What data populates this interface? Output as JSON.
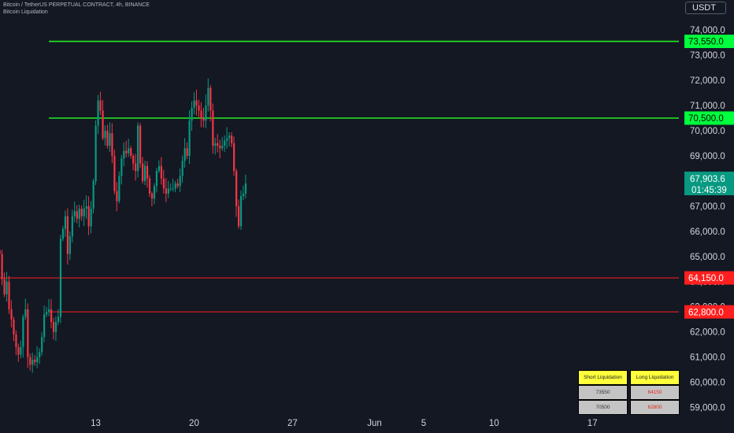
{
  "header": {
    "symbol_line": "Bitcoin / TetherUS PERPETUAL CONTRACT, 4h, BINANCE",
    "indicator_line": "Bitcoin Liquidation",
    "currency": "USDT"
  },
  "chart_data": {
    "type": "candlestick",
    "ylim": [
      58700,
      74850
    ],
    "y_ticks": [
      59000,
      60000,
      61000,
      62000,
      63000,
      64000,
      65000,
      66000,
      67000,
      68000,
      69000,
      70000,
      71000,
      72000,
      73000,
      74000
    ],
    "y_tick_labels": [
      "59,000.0",
      "60,000.0",
      "61,000.0",
      "62,000.0",
      "63,000.0",
      "64,000.0",
      "65,000.0",
      "66,000.0",
      "67,000.0",
      "68,000.0",
      "69,000.0",
      "70,000.0",
      "71,000.0",
      "72,000.0",
      "73,000.0",
      "74,000.0"
    ],
    "x_labels": [
      {
        "label": "13",
        "bar": 20
      },
      {
        "label": "20",
        "bar": 62
      },
      {
        "label": "27",
        "bar": 104
      },
      {
        "label": "Jun",
        "bar": 139
      },
      {
        "label": "5",
        "bar": 160
      },
      {
        "label": "10",
        "bar": 190
      },
      {
        "label": "17",
        "bar": 232
      }
    ],
    "grid": false,
    "levels": [
      {
        "price": 73550,
        "label": "73,550.0",
        "color": "#22ee22",
        "start_bar": 0
      },
      {
        "price": 70500,
        "label": "70,500.0",
        "color": "#22ee22",
        "start_bar": 0
      },
      {
        "price": 64150,
        "label": "64,150.0",
        "color": "#ff1e1e",
        "start_bar": -21
      },
      {
        "price": 62800,
        "label": "62,800.0",
        "color": "#ff1e1e",
        "start_bar": 0
      }
    ],
    "last_price": {
      "value": 67903.6,
      "label": "67,903.6",
      "countdown": "01:45:39",
      "color": "#089981"
    },
    "colors": {
      "up": "#089981",
      "down": "#f23645"
    },
    "anchors": [
      [
        -21,
        65100
      ],
      [
        -20,
        64100
      ],
      [
        -19,
        63500
      ],
      [
        -18,
        64000
      ],
      [
        -17,
        62900
      ],
      [
        -16,
        62500
      ],
      [
        -15,
        61900
      ],
      [
        -14,
        61400
      ],
      [
        -13,
        61100
      ],
      [
        -12,
        61400
      ],
      [
        -11,
        62600
      ],
      [
        -10,
        62900
      ],
      [
        -9,
        61000
      ],
      [
        -8,
        60700
      ],
      [
        -7,
        60900
      ],
      [
        -6,
        60800
      ],
      [
        -5,
        61000
      ],
      [
        -4,
        61200
      ],
      [
        -3,
        61800
      ],
      [
        -2,
        62700
      ],
      [
        0,
        62900
      ],
      [
        1,
        62400
      ],
      [
        2,
        62000
      ],
      [
        3,
        62400
      ],
      [
        4,
        62600
      ],
      [
        5,
        65700
      ],
      [
        6,
        66100
      ],
      [
        7,
        66600
      ],
      [
        8,
        65100
      ],
      [
        9,
        65800
      ],
      [
        10,
        66600
      ],
      [
        11,
        66800
      ],
      [
        12,
        66500
      ],
      [
        13,
        66900
      ],
      [
        14,
        66600
      ],
      [
        15,
        66900
      ],
      [
        16,
        67000
      ],
      [
        17,
        66200
      ],
      [
        18,
        66900
      ],
      [
        19,
        68000
      ],
      [
        20,
        70200
      ],
      [
        21,
        71200
      ],
      [
        22,
        70800
      ],
      [
        23,
        69700
      ],
      [
        24,
        70000
      ],
      [
        25,
        69400
      ],
      [
        26,
        69900
      ],
      [
        27,
        69000
      ],
      [
        28,
        67600
      ],
      [
        29,
        67200
      ],
      [
        30,
        68200
      ],
      [
        31,
        68900
      ],
      [
        32,
        69200
      ],
      [
        33,
        69100
      ],
      [
        34,
        69300
      ],
      [
        35,
        69000
      ],
      [
        36,
        68700
      ],
      [
        37,
        68400
      ],
      [
        38,
        70200
      ],
      [
        39,
        68700
      ],
      [
        40,
        68000
      ],
      [
        41,
        68600
      ],
      [
        42,
        68100
      ],
      [
        43,
        67500
      ],
      [
        44,
        67300
      ],
      [
        45,
        67800
      ],
      [
        46,
        68400
      ],
      [
        47,
        68600
      ],
      [
        48,
        68100
      ],
      [
        49,
        67700
      ],
      [
        50,
        67500
      ],
      [
        51,
        67700
      ],
      [
        52,
        67700
      ],
      [
        53,
        67700
      ],
      [
        54,
        67900
      ],
      [
        55,
        67800
      ],
      [
        56,
        68200
      ],
      [
        57,
        68800
      ],
      [
        58,
        69300
      ],
      [
        59,
        69000
      ],
      [
        60,
        70400
      ],
      [
        61,
        70900
      ],
      [
        62,
        71200
      ],
      [
        63,
        71000
      ],
      [
        64,
        70800
      ],
      [
        65,
        70500
      ],
      [
        66,
        70400
      ],
      [
        67,
        71000
      ],
      [
        68,
        71700
      ],
      [
        69,
        70800
      ],
      [
        70,
        69400
      ],
      [
        71,
        69500
      ],
      [
        72,
        69400
      ],
      [
        73,
        69300
      ],
      [
        74,
        69400
      ],
      [
        75,
        69600
      ],
      [
        76,
        69700
      ],
      [
        77,
        69800
      ],
      [
        78,
        69500
      ],
      [
        79,
        68400
      ],
      [
        80,
        67000
      ],
      [
        81,
        66200
      ],
      [
        82,
        67400
      ],
      [
        83,
        67500
      ],
      [
        84,
        67903.6
      ]
    ]
  },
  "liquidation_table": {
    "headers": [
      "Short Liquidation",
      "Long Liquidation"
    ],
    "rows": [
      [
        "73550",
        "64150"
      ],
      [
        "70500",
        "62800"
      ]
    ]
  }
}
